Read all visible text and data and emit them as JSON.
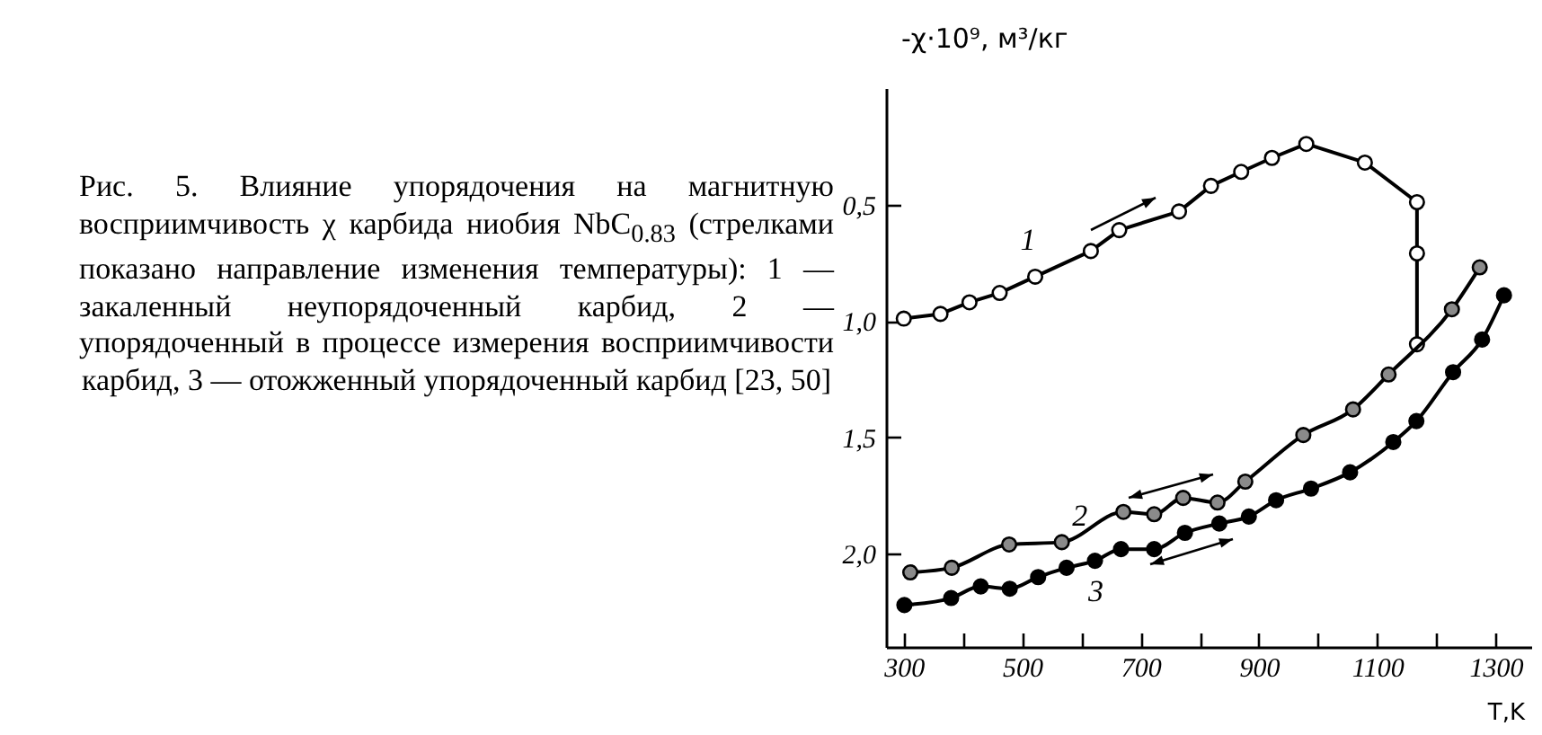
{
  "chart_data": {
    "type": "line",
    "annotations": [
      "Рис. 5. Влияние упорядочения на магнитную восприимчивость χ карбида ниобия NbC$_{0.83}$ (стрелками показано направление изменения температуры): 1 — закаленный неупорядоченный карбид, 2 — упорядоченный в процессе измерения восприимчивости карбид, 3 — отожженный упорядоченный карбид [23, 50]"
    ],
    "xlabel": "T,K",
    "ylabel": "-χ·10⁹, м³/кг",
    "xlim": [
      270,
      1360
    ],
    "ylim": [
      2.4,
      0
    ],
    "xticks": [
      300,
      {
        "value": 400,
        "label": null
      },
      500,
      {
        "value": 600,
        "label": null
      },
      700,
      {
        "value": 800,
        "label": null
      },
      900,
      {
        "value": 1000,
        "label": null
      },
      1100,
      {
        "value": 1200,
        "label": null
      },
      1300
    ],
    "yticks": [
      {
        "value": 0.5,
        "label": "0,5"
      },
      {
        "value": 1.0,
        "label": "1,0"
      },
      {
        "value": 1.5,
        "label": "1,5"
      },
      {
        "value": 2.0,
        "label": "2,0"
      }
    ],
    "marker": "circle",
    "series": [
      {
        "name": "1",
        "color": "#000000",
        "x": [
          300,
          362,
          411,
          462,
          522,
          616,
          664,
          765,
          819,
          870,
          922,
          980,
          1079,
          1167,
          1167,
          1167
        ],
        "values": [
          0.99,
          0.97,
          0.92,
          0.88,
          0.81,
          0.7,
          0.61,
          0.53,
          0.42,
          0.36,
          0.3,
          0.24,
          0.32,
          0.49,
          0.71,
          1.1
        ]
      },
      {
        "name": "2",
        "color": "#000000",
        "x": [
          311,
          381,
          478,
          567,
          671,
          723,
          772,
          830,
          877,
          975,
          1059,
          1119,
          1226,
          1273
        ],
        "values": [
          2.08,
          2.06,
          1.96,
          1.95,
          1.82,
          1.83,
          1.76,
          1.78,
          1.69,
          1.49,
          1.38,
          1.23,
          0.95,
          0.77
        ]
      },
      {
        "name": "3",
        "color": "#000000",
        "x": [
          301,
          380,
          430,
          479,
          527,
          575,
          623,
          667,
          723,
          775,
          833,
          883,
          929,
          988,
          1054,
          1127,
          1166,
          1228,
          1277,
          1314
        ],
        "values": [
          2.22,
          2.19,
          2.14,
          2.15,
          2.1,
          2.06,
          2.03,
          1.98,
          1.98,
          1.91,
          1.87,
          1.84,
          1.77,
          1.72,
          1.65,
          1.52,
          1.43,
          1.22,
          1.08,
          0.89
        ]
      }
    ]
  }
}
